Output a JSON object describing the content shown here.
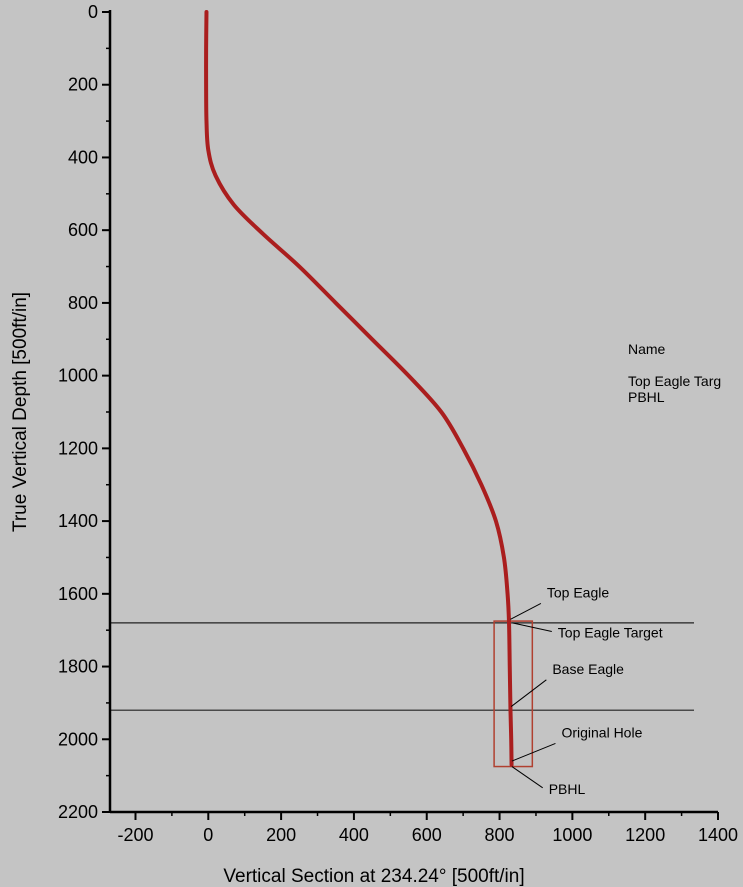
{
  "chart_data": {
    "type": "line",
    "xlabel": "Vertical Section at 234.24° [500ft/in]",
    "ylabel": "True Vertical Depth [500ft/in]",
    "xlim": [
      -270,
      1400
    ],
    "ylim": [
      0,
      2200
    ],
    "y_inverted": true,
    "x_ticks": [
      -200,
      0,
      200,
      400,
      600,
      800,
      1000,
      1200,
      1400
    ],
    "y_ticks": [
      0,
      200,
      400,
      600,
      800,
      1000,
      1200,
      1400,
      1600,
      1800,
      2000,
      2200
    ],
    "grid": false,
    "series": [
      {
        "color": "#aa1e1e",
        "x": [
          -5,
          -6,
          -6,
          -5,
          0,
          20,
          70,
          150,
          250,
          350,
          450,
          550,
          640,
          700,
          750,
          790,
          812,
          822,
          826,
          828,
          830,
          832,
          833
        ],
        "y": [
          0,
          100,
          200,
          300,
          380,
          450,
          530,
          610,
          700,
          800,
          900,
          1000,
          1100,
          1200,
          1300,
          1400,
          1500,
          1600,
          1680,
          1800,
          1920,
          2000,
          2070
        ]
      }
    ],
    "formation_lines": [
      {
        "depth": 1680,
        "color": "#222222"
      },
      {
        "depth": 1920,
        "color": "#222222"
      }
    ],
    "target_box": {
      "x0": 785,
      "x1": 890,
      "y0": 1675,
      "y1": 2075,
      "color": "#b04030"
    },
    "annotations": [
      {
        "text": "Top Eagle",
        "point": [
          830,
          1670
        ],
        "text_at": [
          930,
          1610
        ]
      },
      {
        "text": "Top Eagle Target",
        "point": [
          835,
          1680
        ],
        "text_at": [
          960,
          1720
        ]
      },
      {
        "text": "Base Eagle",
        "point": [
          832,
          1910
        ],
        "text_at": [
          945,
          1820
        ]
      },
      {
        "text": "Original Hole",
        "point": [
          834,
          2060
        ],
        "text_at": [
          970,
          1995
        ]
      },
      {
        "text": "PBHL",
        "point": [
          834,
          2075
        ],
        "text_at": [
          935,
          2150
        ]
      }
    ],
    "side_panel": {
      "header": "Name",
      "items": [
        "Top Eagle Targ",
        "PBHL"
      ]
    }
  }
}
